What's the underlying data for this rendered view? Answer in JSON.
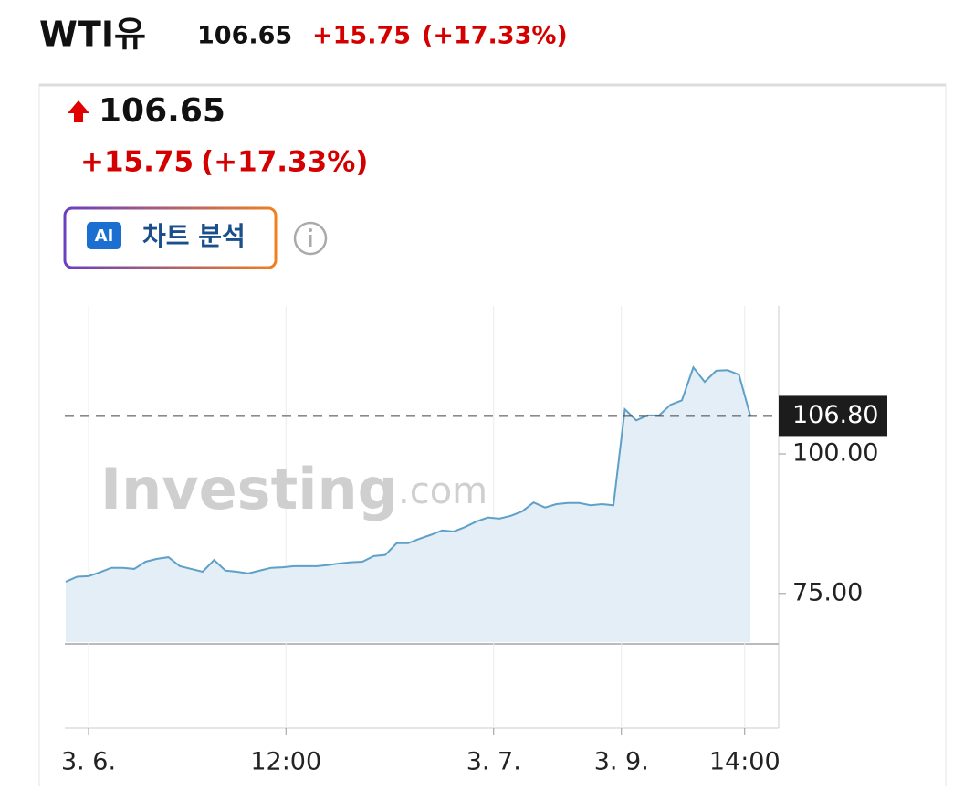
{
  "header": {
    "name": "WTI유",
    "price": "106.65",
    "change": "+15.75",
    "change_pct": "(+17.33%)"
  },
  "quote": {
    "price": "106.65",
    "change": "+15.75",
    "change_pct": "(+17.33%)"
  },
  "button": {
    "icon": "AI",
    "label": "차트 분석"
  },
  "chart_data": {
    "type": "area",
    "watermark": [
      "Investing",
      ".com"
    ],
    "x": [
      0,
      1,
      2,
      3,
      4,
      5,
      6,
      7,
      8,
      9,
      10,
      11,
      12,
      13,
      14,
      15,
      16,
      17,
      18,
      19,
      20,
      21,
      22,
      23,
      24,
      25,
      26,
      27,
      28,
      29,
      30,
      31,
      32,
      33,
      34,
      35,
      36,
      37,
      38,
      39,
      40,
      41,
      42,
      43,
      44,
      45,
      46,
      47,
      48,
      49,
      50,
      51,
      52,
      53,
      54,
      55,
      56,
      57,
      58,
      59,
      60
    ],
    "series": [
      {
        "color": "#5fa0c8",
        "values": [
          77.1,
          78.0,
          78.1,
          78.8,
          79.6,
          79.6,
          79.4,
          80.7,
          81.2,
          81.5,
          79.9,
          79.4,
          78.9,
          81.0,
          79.1,
          78.9,
          78.6,
          79.1,
          79.6,
          79.7,
          79.9,
          79.9,
          79.9,
          80.1,
          80.4,
          80.6,
          80.7,
          81.7,
          81.9,
          84.0,
          84.0,
          84.8,
          85.5,
          86.3,
          86.1,
          86.9,
          87.9,
          88.6,
          88.4,
          88.9,
          89.7,
          91.3,
          90.4,
          91.0,
          91.2,
          91.2,
          90.8,
          91.0,
          90.8,
          108.0,
          106.0,
          106.9,
          106.9,
          108.8,
          109.6,
          115.5,
          112.9,
          114.9,
          115.0,
          114.2,
          106.8
        ]
      }
    ],
    "xlim": [
      0,
      60
    ],
    "xticks": [
      {
        "value": 2,
        "label": "3. 6."
      },
      {
        "value": 19.3,
        "label": "12:00"
      },
      {
        "value": 37.5,
        "label": "3. 7."
      },
      {
        "value": 48.7,
        "label": "3. 9."
      },
      {
        "value": 59.5,
        "label": "14:00"
      }
    ],
    "ylim": [
      66.3,
      126.5
    ],
    "yticks": [
      {
        "value": 75,
        "label": "75.00"
      },
      {
        "value": 100,
        "label": "100.00"
      }
    ],
    "last_price": {
      "value": 106.8,
      "label": "106.80"
    },
    "grid": true
  }
}
